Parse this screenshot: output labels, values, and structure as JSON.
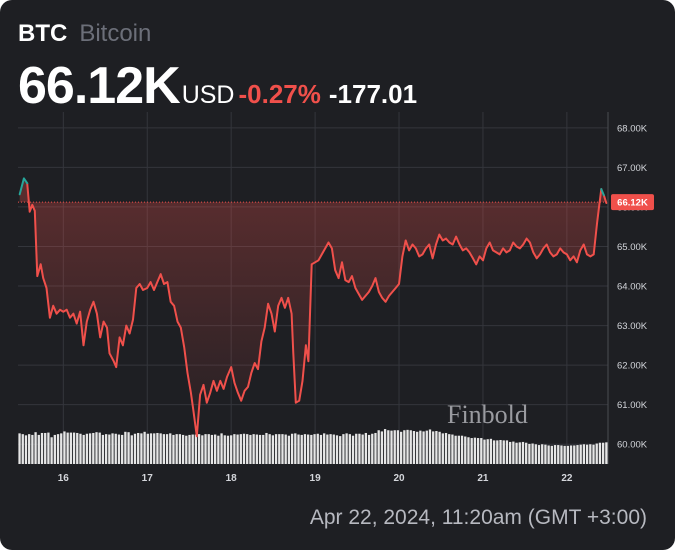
{
  "header": {
    "ticker": "BTC",
    "name": "Bitcoin",
    "price": "66.12K",
    "currency": "USD",
    "change_pct": "-0.27%",
    "change_abs": "-177.01"
  },
  "footer": {
    "timestamp": "Apr 22, 2024, 11:20am (GMT +3:00)"
  },
  "watermark": "Finbold",
  "colors": {
    "background": "#1e1f23",
    "line_down": "#f0504b",
    "line_up": "#26a69a",
    "volume": "#e6e6e6",
    "grid": "#34363c"
  },
  "chart_data": {
    "type": "line",
    "y_unit": "USD",
    "ylim": [
      59500,
      68400
    ],
    "y_ticks": [
      {
        "value": 68000,
        "label": "68.00K"
      },
      {
        "value": 67000,
        "label": "67.00K"
      },
      {
        "value": 66000,
        "label": "66.00K"
      },
      {
        "value": 65000,
        "label": "65.00K"
      },
      {
        "value": 64000,
        "label": "64.00K"
      },
      {
        "value": 63000,
        "label": "63.00K"
      },
      {
        "value": 62000,
        "label": "62.00K"
      },
      {
        "value": 61000,
        "label": "61.00K"
      },
      {
        "value": 60000,
        "label": "60.00K"
      }
    ],
    "x_ticks": [
      {
        "day": 16,
        "label": "16"
      },
      {
        "day": 17,
        "label": "17"
      },
      {
        "day": 18,
        "label": "18"
      },
      {
        "day": 19,
        "label": "19"
      },
      {
        "day": 20,
        "label": "20"
      },
      {
        "day": 21,
        "label": "21"
      },
      {
        "day": 22,
        "label": "22"
      }
    ],
    "xlim": [
      15.46,
      22.49
    ],
    "last_price": {
      "value": 66120,
      "label": "66.12K"
    },
    "grid": true,
    "series": [
      {
        "points": [
          [
            15.48,
            66.32
          ],
          [
            15.53,
            66.72
          ],
          [
            15.57,
            66.6
          ],
          [
            15.6,
            65.88
          ],
          [
            15.63,
            66.05
          ],
          [
            15.66,
            65.9
          ],
          [
            15.69,
            64.25
          ],
          [
            15.73,
            64.55
          ],
          [
            15.76,
            64.2
          ],
          [
            15.8,
            63.95
          ],
          [
            15.84,
            63.2
          ],
          [
            15.88,
            63.5
          ],
          [
            15.92,
            63.3
          ],
          [
            15.96,
            63.4
          ],
          [
            16.0,
            63.35
          ],
          [
            16.04,
            63.4
          ],
          [
            16.08,
            63.2
          ],
          [
            16.12,
            63.3
          ],
          [
            16.16,
            63.05
          ],
          [
            16.2,
            63.35
          ],
          [
            16.24,
            62.5
          ],
          [
            16.28,
            63.1
          ],
          [
            16.32,
            63.4
          ],
          [
            16.36,
            63.6
          ],
          [
            16.4,
            63.3
          ],
          [
            16.44,
            62.7
          ],
          [
            16.48,
            63.1
          ],
          [
            16.52,
            62.95
          ],
          [
            16.55,
            62.3
          ],
          [
            16.6,
            62.1
          ],
          [
            16.63,
            61.95
          ],
          [
            16.67,
            62.7
          ],
          [
            16.71,
            62.5
          ],
          [
            16.75,
            63.0
          ],
          [
            16.79,
            62.8
          ],
          [
            16.83,
            63.15
          ],
          [
            16.87,
            63.95
          ],
          [
            16.91,
            64.05
          ],
          [
            16.95,
            63.9
          ],
          [
            17.0,
            63.95
          ],
          [
            17.04,
            64.1
          ],
          [
            17.08,
            63.9
          ],
          [
            17.12,
            64.1
          ],
          [
            17.16,
            64.3
          ],
          [
            17.2,
            64.05
          ],
          [
            17.24,
            64.1
          ],
          [
            17.28,
            63.6
          ],
          [
            17.32,
            63.5
          ],
          [
            17.36,
            63.1
          ],
          [
            17.4,
            62.95
          ],
          [
            17.44,
            62.45
          ],
          [
            17.48,
            61.8
          ],
          [
            17.52,
            61.3
          ],
          [
            17.55,
            60.85
          ],
          [
            17.59,
            60.2
          ],
          [
            17.63,
            61.25
          ],
          [
            17.67,
            61.5
          ],
          [
            17.71,
            61.05
          ],
          [
            17.75,
            61.3
          ],
          [
            17.79,
            61.6
          ],
          [
            17.83,
            61.35
          ],
          [
            17.87,
            61.6
          ],
          [
            17.91,
            61.4
          ],
          [
            17.95,
            61.7
          ],
          [
            18.0,
            61.95
          ],
          [
            18.04,
            61.55
          ],
          [
            18.08,
            61.3
          ],
          [
            18.12,
            61.1
          ],
          [
            18.16,
            61.35
          ],
          [
            18.2,
            61.45
          ],
          [
            18.24,
            61.8
          ],
          [
            18.28,
            62.05
          ],
          [
            18.32,
            61.9
          ],
          [
            18.36,
            62.6
          ],
          [
            18.4,
            62.95
          ],
          [
            18.44,
            63.55
          ],
          [
            18.48,
            63.3
          ],
          [
            18.52,
            62.85
          ],
          [
            18.56,
            63.5
          ],
          [
            18.6,
            63.7
          ],
          [
            18.64,
            63.45
          ],
          [
            18.68,
            63.7
          ],
          [
            18.72,
            63.3
          ],
          [
            18.74,
            62.3
          ],
          [
            18.77,
            61.05
          ],
          [
            18.81,
            61.1
          ],
          [
            18.85,
            61.6
          ],
          [
            18.89,
            62.5
          ],
          [
            18.92,
            62.1
          ],
          [
            18.96,
            64.55
          ],
          [
            19.0,
            64.6
          ],
          [
            19.04,
            64.65
          ],
          [
            19.08,
            64.8
          ],
          [
            19.12,
            64.95
          ],
          [
            19.16,
            65.1
          ],
          [
            19.2,
            64.95
          ],
          [
            19.24,
            64.4
          ],
          [
            19.28,
            64.2
          ],
          [
            19.32,
            64.6
          ],
          [
            19.36,
            64.15
          ],
          [
            19.4,
            64.1
          ],
          [
            19.44,
            64.25
          ],
          [
            19.48,
            63.95
          ],
          [
            19.52,
            63.8
          ],
          [
            19.56,
            63.65
          ],
          [
            19.6,
            63.75
          ],
          [
            19.64,
            63.85
          ],
          [
            19.68,
            64.0
          ],
          [
            19.72,
            64.2
          ],
          [
            19.76,
            63.85
          ],
          [
            19.8,
            63.7
          ],
          [
            19.84,
            63.6
          ],
          [
            19.88,
            63.75
          ],
          [
            19.92,
            63.85
          ],
          [
            19.96,
            63.95
          ],
          [
            20.0,
            64.05
          ],
          [
            20.04,
            64.75
          ],
          [
            20.08,
            65.15
          ],
          [
            20.12,
            64.9
          ],
          [
            20.16,
            65.05
          ],
          [
            20.2,
            64.95
          ],
          [
            20.24,
            64.75
          ],
          [
            20.28,
            64.8
          ],
          [
            20.32,
            64.95
          ],
          [
            20.36,
            65.05
          ],
          [
            20.4,
            64.7
          ],
          [
            20.44,
            65.05
          ],
          [
            20.48,
            65.3
          ],
          [
            20.52,
            65.15
          ],
          [
            20.56,
            65.2
          ],
          [
            20.6,
            65.1
          ],
          [
            20.64,
            65.05
          ],
          [
            20.68,
            65.25
          ],
          [
            20.72,
            65.05
          ],
          [
            20.76,
            64.9
          ],
          [
            20.8,
            64.95
          ],
          [
            20.84,
            64.85
          ],
          [
            20.88,
            64.7
          ],
          [
            20.92,
            64.55
          ],
          [
            20.96,
            64.75
          ],
          [
            21.0,
            64.65
          ],
          [
            21.04,
            64.95
          ],
          [
            21.08,
            65.1
          ],
          [
            21.12,
            64.9
          ],
          [
            21.16,
            64.85
          ],
          [
            21.2,
            64.8
          ],
          [
            21.24,
            64.95
          ],
          [
            21.28,
            64.85
          ],
          [
            21.32,
            64.9
          ],
          [
            21.36,
            65.1
          ],
          [
            21.4,
            65.0
          ],
          [
            21.44,
            64.95
          ],
          [
            21.48,
            65.05
          ],
          [
            21.52,
            65.2
          ],
          [
            21.56,
            65.1
          ],
          [
            21.6,
            64.85
          ],
          [
            21.64,
            64.7
          ],
          [
            21.68,
            64.8
          ],
          [
            21.72,
            64.95
          ],
          [
            21.76,
            65.05
          ],
          [
            21.8,
            64.85
          ],
          [
            21.84,
            64.75
          ],
          [
            21.88,
            64.8
          ],
          [
            21.92,
            64.95
          ],
          [
            21.96,
            64.85
          ],
          [
            22.0,
            64.8
          ],
          [
            22.04,
            64.65
          ],
          [
            22.08,
            64.75
          ],
          [
            22.12,
            64.6
          ],
          [
            22.16,
            64.9
          ],
          [
            22.2,
            65.05
          ],
          [
            22.24,
            64.8
          ],
          [
            22.28,
            64.75
          ],
          [
            22.32,
            64.8
          ],
          [
            22.36,
            65.6
          ],
          [
            22.38,
            65.95
          ],
          [
            22.41,
            66.45
          ],
          [
            22.44,
            66.3
          ],
          [
            22.47,
            66.1
          ]
        ]
      }
    ],
    "volume": [
      0.76,
      0.74,
      0.71,
      0.74,
      0.72,
      0.79,
      0.72,
      0.77,
      0.77,
      0.78,
      0.66,
      0.72,
      0.74,
      0.76,
      0.81,
      0.78,
      0.78,
      0.78,
      0.77,
      0.75,
      0.72,
      0.75,
      0.76,
      0.77,
      0.79,
      0.78,
      0.72,
      0.74,
      0.73,
      0.76,
      0.75,
      0.73,
      0.72,
      0.8,
      0.79,
      0.71,
      0.75,
      0.77,
      0.76,
      0.8,
      0.75,
      0.76,
      0.76,
      0.77,
      0.76,
      0.74,
      0.74,
      0.76,
      0.72,
      0.74,
      0.74,
      0.72,
      0.7,
      0.72,
      0.73,
      0.73,
      0.74,
      0.71,
      0.74,
      0.74,
      0.72,
      0.73,
      0.7,
      0.76,
      0.71,
      0.7,
      0.71,
      0.74,
      0.73,
      0.74,
      0.75,
      0.74,
      0.72,
      0.74,
      0.73,
      0.72,
      0.72,
      0.77,
      0.74,
      0.71,
      0.74,
      0.74,
      0.74,
      0.73,
      0.7,
      0.75,
      0.76,
      0.73,
      0.72,
      0.74,
      0.73,
      0.72,
      0.74,
      0.75,
      0.72,
      0.76,
      0.73,
      0.74,
      0.73,
      0.71,
      0.69,
      0.74,
      0.76,
      0.74,
      0.7,
      0.75,
      0.75,
      0.73,
      0.77,
      0.72,
      0.75,
      0.77,
      0.84,
      0.81,
      0.87,
      0.84,
      0.83,
      0.84,
      0.84,
      0.8,
      0.84,
      0.85,
      0.84,
      0.82,
      0.8,
      0.83,
      0.81,
      0.83,
      0.86,
      0.81,
      0.82,
      0.8,
      0.76,
      0.77,
      0.74,
      0.73,
      0.7,
      0.7,
      0.7,
      0.68,
      0.66,
      0.64,
      0.65,
      0.64,
      0.64,
      0.6,
      0.61,
      0.62,
      0.58,
      0.58,
      0.59,
      0.58,
      0.58,
      0.54,
      0.55,
      0.52,
      0.53,
      0.54,
      0.52,
      0.49,
      0.5,
      0.48,
      0.46,
      0.48,
      0.47,
      0.45,
      0.44,
      0.46,
      0.46,
      0.45,
      0.44,
      0.44,
      0.45,
      0.45,
      0.46,
      0.47,
      0.48,
      0.47,
      0.48,
      0.47,
      0.5,
      0.52,
      0.52,
      0.53
    ]
  }
}
